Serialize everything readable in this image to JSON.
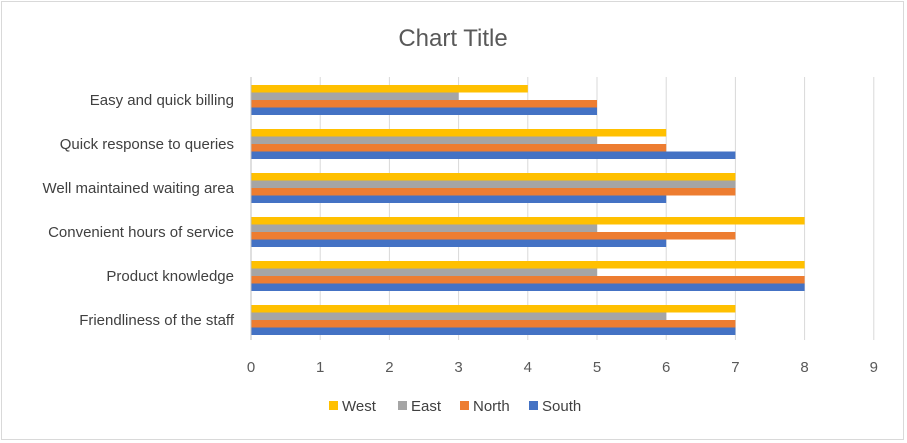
{
  "chart_data": {
    "type": "bar",
    "orientation": "horizontal",
    "title": "Chart Title",
    "xlabel": "",
    "ylabel": "",
    "xlim": [
      0,
      9
    ],
    "x_ticks": [
      0,
      1,
      2,
      3,
      4,
      5,
      6,
      7,
      8,
      9
    ],
    "grid": true,
    "legend_position": "bottom",
    "categories": [
      "Easy and quick billing",
      "Quick response to queries",
      "Well maintained waiting area",
      "Convenient hours of service",
      "Product knowledge",
      "Friendliness of the staff"
    ],
    "series": [
      {
        "name": "West",
        "color": "#FFC000",
        "values": [
          4,
          6,
          7,
          8,
          8,
          7
        ]
      },
      {
        "name": "East",
        "color": "#A5A5A5",
        "values": [
          3,
          5,
          7,
          5,
          5,
          6
        ]
      },
      {
        "name": "North",
        "color": "#ED7D31",
        "values": [
          5,
          6,
          7,
          7,
          8,
          7
        ]
      },
      {
        "name": "South",
        "color": "#4472C4",
        "values": [
          5,
          7,
          6,
          6,
          8,
          7
        ]
      }
    ]
  }
}
